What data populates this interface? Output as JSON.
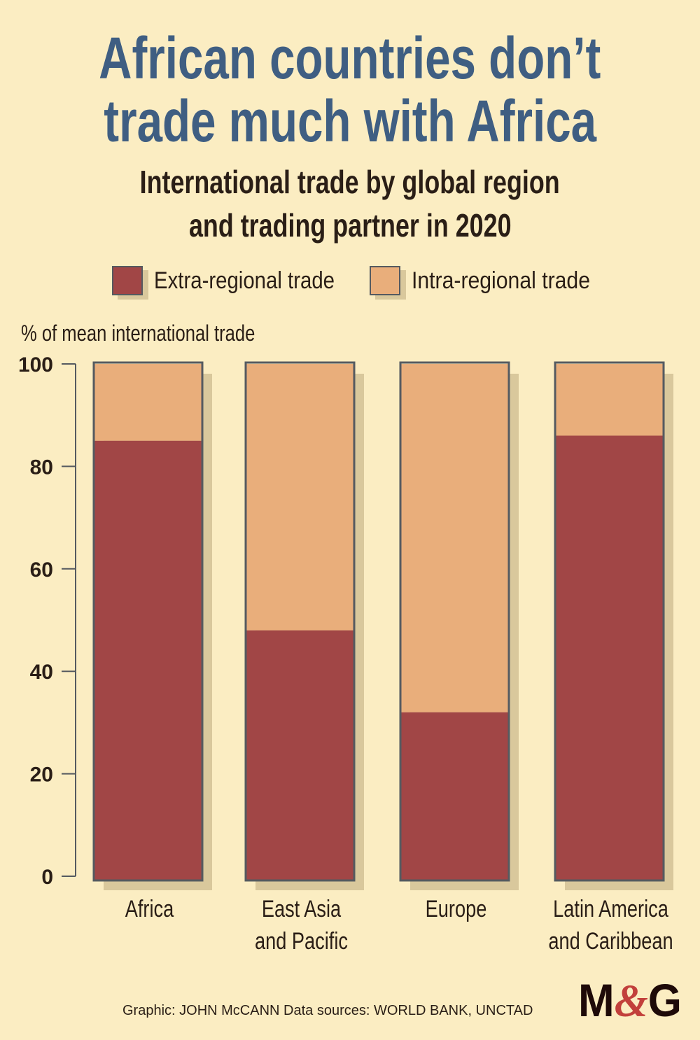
{
  "title_lines": [
    "African countries don’t",
    "trade much with Africa"
  ],
  "subtitle_lines": [
    "International trade by global region",
    "and trading partner in 2020"
  ],
  "footer": "Graphic: JOHN McCANN  Data sources: WORLD BANK, UNCTAD",
  "logo": {
    "text": "M&G"
  },
  "colors": {
    "extra": "#a14646",
    "intra": "#e9ae7b",
    "title": "#3f5e82",
    "background": "#fbedc2",
    "shadow": "#d9c89c",
    "outline": "#555a60"
  },
  "chart_data": {
    "type": "bar",
    "stacked": true,
    "title": "International trade by global region and trading partner in 2020",
    "ylabel": "% of mean international trade",
    "xlabel": "",
    "ylim": [
      0,
      100
    ],
    "yticks": [
      "0",
      "20",
      "40",
      "60",
      "80",
      "100"
    ],
    "categories": [
      [
        "Africa"
      ],
      [
        "East Asia",
        "and Pacific"
      ],
      [
        "Europe"
      ],
      [
        "Latin America",
        "and Caribbean"
      ]
    ],
    "series": [
      {
        "name": "Extra-regional trade",
        "values": [
          85,
          48,
          32,
          86
        ]
      },
      {
        "name": "Intra-regional trade",
        "values": [
          15,
          52,
          68,
          14
        ]
      }
    ],
    "legend": "top"
  }
}
